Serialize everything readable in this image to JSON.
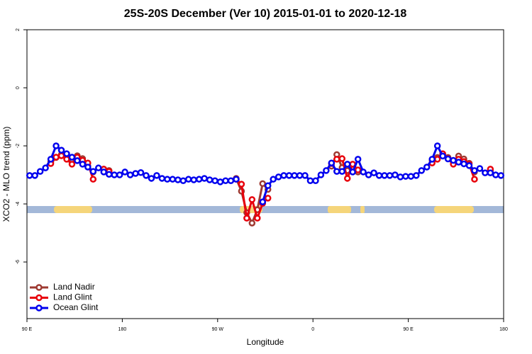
{
  "chart_data": {
    "type": "line",
    "title": "25S-20S December (Ver 10)   2015-01-01 to 2020-12-18",
    "x_label": "Longitude",
    "y_label": "XCO2 - MLO trend (ppm)",
    "x": [
      92.5,
      97.5,
      102.5,
      107.5,
      112.5,
      117.5,
      122.5,
      127.5,
      132.5,
      137.5,
      142.5,
      147.5,
      152.5,
      157.5,
      162.5,
      167.5,
      172.5,
      177.5,
      182.5,
      187.5,
      192.5,
      197.5,
      202.5,
      207.5,
      212.5,
      217.5,
      222.5,
      227.5,
      232.5,
      237.5,
      242.5,
      247.5,
      252.5,
      257.5,
      262.5,
      267.5,
      272.5,
      277.5,
      282.5,
      287.5,
      292.5,
      297.5,
      302.5,
      307.5,
      312.5,
      317.5,
      322.5,
      327.5,
      332.5,
      337.5,
      342.5,
      347.5,
      352.5,
      357.5,
      362.5,
      367.5,
      372.5,
      377.5,
      382.5,
      387.5,
      392.5,
      397.5,
      402.5,
      407.5,
      412.5,
      417.5,
      422.5,
      427.5,
      432.5,
      437.5,
      442.5,
      447.5,
      452.5,
      457.5,
      462.5,
      467.5,
      472.5,
      477.5,
      482.5,
      487.5,
      492.5,
      497.5,
      502.5,
      507.5,
      512.5,
      517.5,
      522.5,
      527.5,
      532.5,
      537.5
    ],
    "series": [
      {
        "name": "Land Nadir",
        "color": "#9e3a32",
        "values": [
          null,
          null,
          null,
          null,
          -2.55,
          -2.4,
          -2.3,
          -2.4,
          -2.55,
          -2.34,
          -2.44,
          -2.7,
          -2.9,
          null,
          -2.8,
          -2.85,
          null,
          null,
          null,
          null,
          null,
          null,
          null,
          null,
          null,
          null,
          null,
          null,
          null,
          null,
          null,
          null,
          null,
          null,
          null,
          null,
          null,
          null,
          null,
          -3.12,
          -3.56,
          -4.3,
          -4.66,
          -4.2,
          -3.3,
          -3.5,
          null,
          null,
          null,
          null,
          null,
          null,
          null,
          null,
          null,
          null,
          null,
          -2.7,
          -2.3,
          -2.75,
          -2.85,
          -2.8,
          -2.9,
          null,
          null,
          null,
          null,
          null,
          null,
          null,
          null,
          null,
          null,
          null,
          null,
          null,
          -2.5,
          -2.4,
          -2.3,
          -2.4,
          -2.55,
          -2.35,
          -2.45,
          -2.6,
          -2.9,
          null,
          null,
          -2.85,
          null,
          null
        ]
      },
      {
        "name": "Land Glint",
        "color": "#e8000b",
        "values": [
          null,
          null,
          null,
          null,
          -2.61,
          -2.39,
          -2.34,
          -2.46,
          -2.63,
          -2.39,
          -2.5,
          -2.59,
          -3.15,
          null,
          -2.8,
          -2.88,
          null,
          null,
          null,
          null,
          null,
          null,
          null,
          null,
          null,
          null,
          null,
          null,
          null,
          null,
          null,
          null,
          null,
          null,
          null,
          null,
          null,
          null,
          null,
          -3.15,
          -3.32,
          -4.49,
          -3.85,
          -4.49,
          -3.98,
          -3.8,
          null,
          null,
          null,
          null,
          null,
          null,
          null,
          null,
          null,
          null,
          null,
          -2.61,
          -2.46,
          -2.44,
          -3.12,
          -2.63,
          -2.83,
          null,
          null,
          null,
          null,
          null,
          null,
          null,
          null,
          null,
          null,
          null,
          null,
          null,
          -2.59,
          -2.46,
          -2.27,
          -2.44,
          -2.63,
          -2.46,
          -2.54,
          -2.63,
          -3.15,
          null,
          null,
          -2.8,
          null,
          null
        ]
      },
      {
        "name": "Ocean Glint",
        "color": "#0000ee",
        "values": [
          -3.02,
          -3.02,
          -2.88,
          -2.76,
          -2.46,
          -2.0,
          -2.15,
          -2.27,
          -2.39,
          -2.51,
          -2.63,
          -2.73,
          -2.88,
          -2.76,
          -2.9,
          -2.98,
          -3.0,
          -3.0,
          -2.9,
          -3.0,
          -2.95,
          -2.92,
          -3.02,
          -3.12,
          -3.02,
          -3.12,
          -3.15,
          -3.15,
          -3.17,
          -3.2,
          -3.15,
          -3.17,
          -3.15,
          -3.12,
          -3.17,
          -3.2,
          -3.24,
          -3.2,
          -3.2,
          -3.15,
          null,
          null,
          null,
          null,
          -3.93,
          -3.37,
          -3.15,
          -3.07,
          -3.02,
          -3.02,
          -3.02,
          -3.02,
          -3.02,
          -3.2,
          -3.2,
          -3.0,
          -2.85,
          -2.59,
          -2.88,
          -2.88,
          -2.63,
          -2.9,
          -2.46,
          -2.9,
          -3.0,
          -2.93,
          -3.02,
          -3.02,
          -3.02,
          -3.0,
          -3.07,
          -3.05,
          -3.05,
          -3.02,
          -2.85,
          -2.73,
          -2.46,
          -2.0,
          -2.35,
          -2.45,
          -2.5,
          -2.56,
          -2.62,
          -2.68,
          -2.85,
          -2.78,
          -2.93,
          -2.93,
          -3.0,
          -3.02
        ]
      }
    ],
    "xlim": [
      90,
      540
    ],
    "xticks": [
      {
        "value": 90,
        "label": "90 E"
      },
      {
        "value": 180,
        "label": "180"
      },
      {
        "value": 270,
        "label": "90 W"
      },
      {
        "value": 360,
        "label": "0"
      },
      {
        "value": 450,
        "label": "90 E"
      },
      {
        "value": 540,
        "label": "180"
      }
    ],
    "ylim": [
      -7.95,
      2
    ],
    "yticks": [
      -6,
      -4,
      -2,
      0,
      2
    ],
    "legend": "bottom-left"
  }
}
